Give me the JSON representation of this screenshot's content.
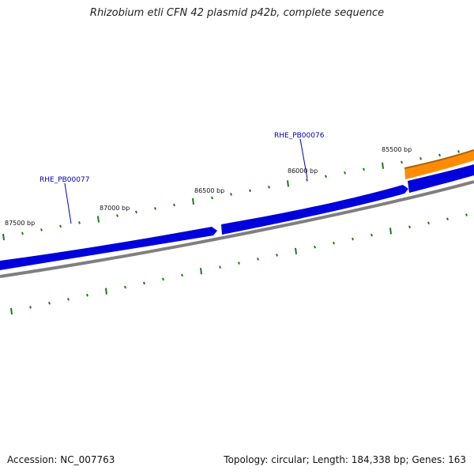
{
  "title": "Rhizobium etli CFN 42 plasmid p42b, complete sequence",
  "ticks": [
    {
      "label": "85500 bp"
    },
    {
      "label": "86000 bp"
    },
    {
      "label": "86500 bp"
    },
    {
      "label": "87000 bp"
    },
    {
      "label": "87500 bp"
    }
  ],
  "genes": [
    {
      "name": "RHE_PB00076",
      "color": "#0000dd"
    },
    {
      "name": "RHE_PB00077",
      "color": "#0000dd"
    }
  ],
  "colors": {
    "forward_gene": "#0000dd",
    "reverse_gene": "#ff8c00",
    "backbone": "#808080",
    "ticks": "#1a7a1a",
    "gene_label": "#0000aa"
  },
  "footer": {
    "accession": "Accession: NC_007763",
    "summary": "Topology: circular; Length: 184,338 bp; Genes: 163"
  }
}
